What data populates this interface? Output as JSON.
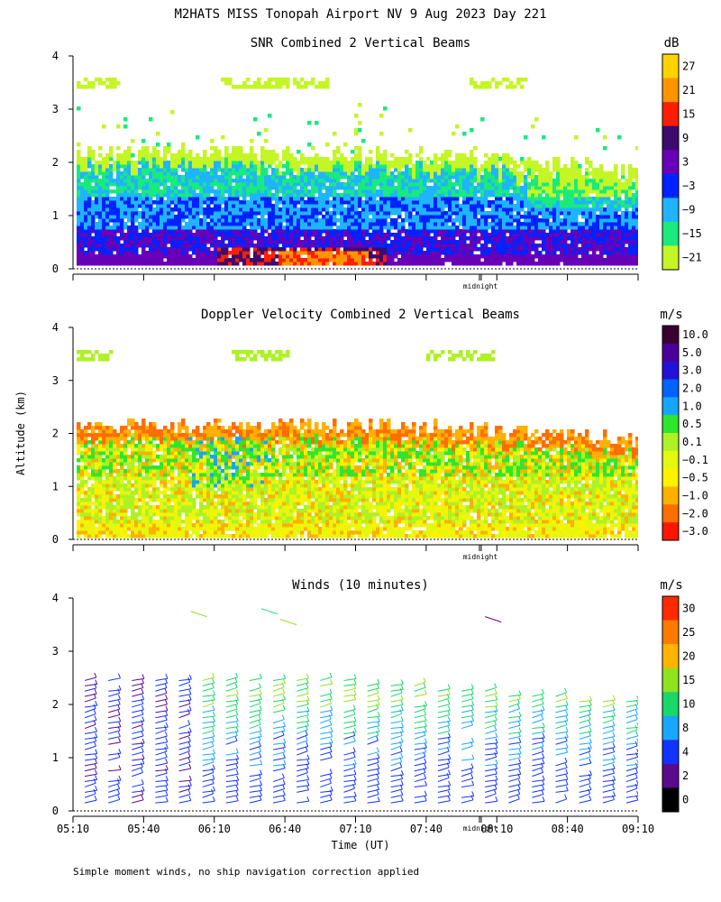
{
  "figure": {
    "title": "M2HATS MISS Tonopah Airport NV   9 Aug 2023 Day 221",
    "shared_ylabel": "Altitude (km)",
    "xlabel": "Time (UT)",
    "footer": "Simple moment winds, no ship navigation correction applied",
    "midnight_label": "midnight"
  },
  "chart_data": [
    {
      "type": "heatmap",
      "title": "SNR Combined 2 Vertical Beams",
      "xlabel": "",
      "ylabel": "",
      "ylim": [
        0,
        4
      ],
      "yticks": [
        "0",
        "1",
        "2",
        "3",
        "4"
      ],
      "xticks": [
        "",
        "",
        "",
        "",
        "",
        "",
        "",
        "",
        ""
      ],
      "colorbar": {
        "unit": "dB",
        "tick_labels": [
          "27",
          "21",
          "15",
          "9",
          "3",
          "−3",
          "−9",
          "−15",
          "−21"
        ],
        "colors": [
          "#ffd300",
          "#ff9400",
          "#ff1f00",
          "#3d0a6e",
          "#6800b8",
          "#0022ff",
          "#1fb4ff",
          "#19ea7d",
          "#c4f626"
        ]
      },
      "description_layers": [
        {
          "top_km": 2.3,
          "bottom_km": 0.15,
          "start": "05:10",
          "end": "09:00",
          "dominant": "−9 to −3"
        },
        {
          "top_km": 0.8,
          "bottom_km": 0.15,
          "start": "05:10",
          "end": "08:10",
          "dominant": "3 to 9"
        },
        {
          "top_km": 0.4,
          "bottom_km": 0.2,
          "start": "06:40",
          "end": "07:30",
          "dominant": "15"
        }
      ]
    },
    {
      "type": "heatmap",
      "title": "Doppler Velocity Combined 2 Vertical Beams",
      "xlabel": "",
      "ylabel": "",
      "ylim": [
        0,
        4
      ],
      "yticks": [
        "0",
        "1",
        "2",
        "3",
        "4"
      ],
      "xticks": [
        "",
        "",
        "",
        "",
        "",
        "",
        "",
        "",
        ""
      ],
      "colorbar": {
        "unit": "m/s",
        "tick_labels": [
          "10.0",
          "5.0",
          "3.0",
          "2.0",
          "1.0",
          "0.5",
          "0.1",
          "−0.1",
          "−0.5",
          "−1.0",
          "−2.0",
          "−3.0"
        ],
        "colors": [
          "#3a0030",
          "#4b009a",
          "#2411d8",
          "#0062ff",
          "#17a4ff",
          "#2fe62c",
          "#aef125",
          "#e4f70f",
          "#fff200",
          "#ffb000",
          "#ff6e00",
          "#ff1500"
        ]
      }
    },
    {
      "type": "scatter",
      "subtype": "wind barbs",
      "title": "Winds (10 minutes)",
      "xlabel": "Time (UT)",
      "ylabel": "",
      "ylim": [
        0,
        4
      ],
      "yticks": [
        "0",
        "1",
        "2",
        "3",
        "4"
      ],
      "xticks": [
        "05:10",
        "05:40",
        "06:10",
        "06:40",
        "07:10",
        "07:40",
        "08:10",
        "08:40",
        "09:10"
      ],
      "colorbar": {
        "unit": "m/s",
        "tick_labels": [
          "30",
          "25",
          "20",
          "15",
          "10",
          "8",
          "4",
          "2",
          "0"
        ],
        "colors": [
          "#ff2a00",
          "#ff7a00",
          "#ffb400",
          "#8fe31f",
          "#19d86a",
          "#19a6ff",
          "#1233ff",
          "#5a0a8e",
          "#000000"
        ]
      }
    }
  ]
}
